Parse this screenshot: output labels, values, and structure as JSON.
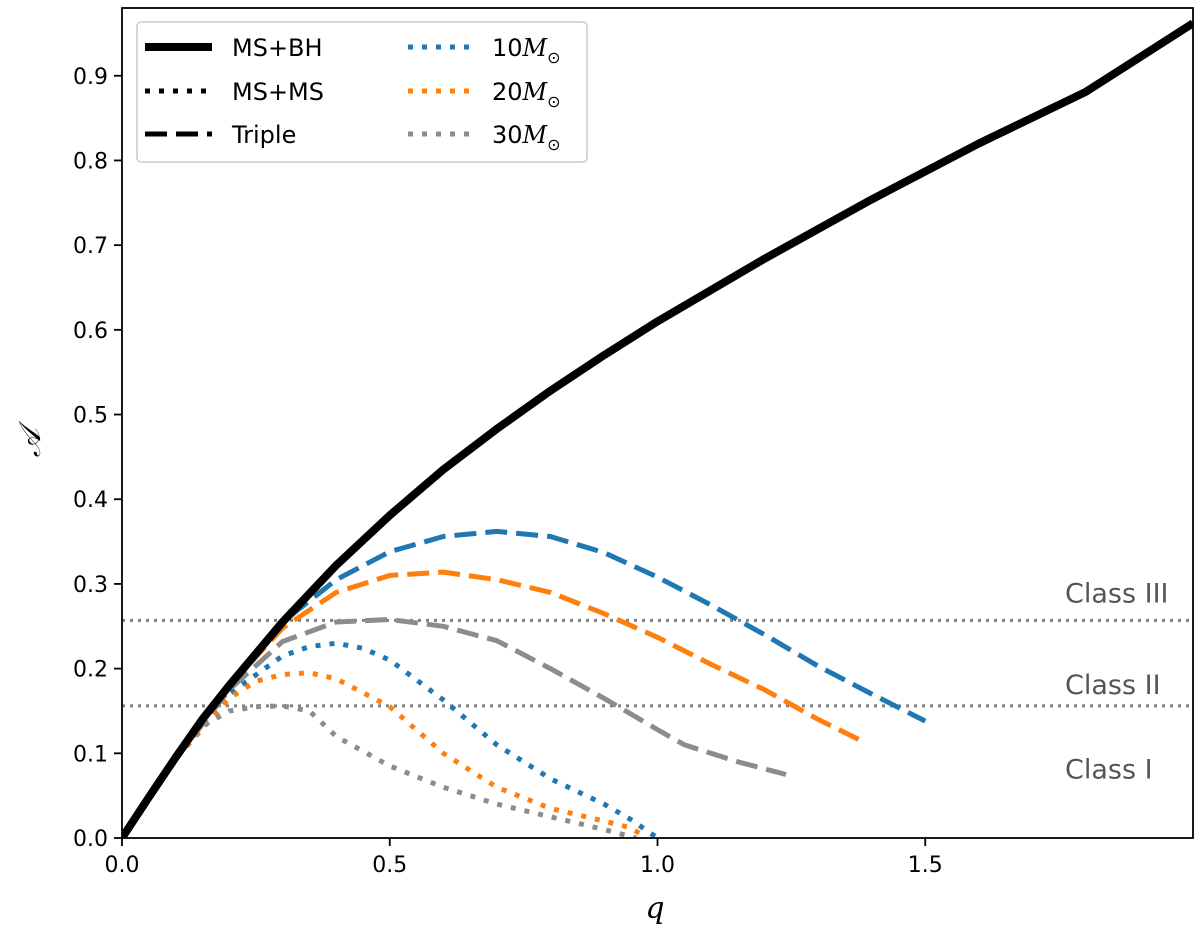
{
  "chart_data": {
    "type": "line",
    "xlabel": "q",
    "ylabel": "𝒜",
    "xlim": [
      0,
      2.0
    ],
    "ylim": [
      0,
      0.98
    ],
    "xticks": [
      0.0,
      0.5,
      1.0,
      1.5
    ],
    "xtick_labels": [
      "0.0",
      "0.5",
      "1.0",
      "1.5"
    ],
    "yticks": [
      0.0,
      0.1,
      0.2,
      0.3,
      0.4,
      0.5,
      0.6,
      0.7,
      0.8,
      0.9
    ],
    "ytick_labels": [
      "0.0",
      "0.1",
      "0.2",
      "0.3",
      "0.4",
      "0.5",
      "0.6",
      "0.7",
      "0.8",
      "0.9"
    ],
    "grid": false,
    "legend_position": "top-left",
    "legend": {
      "col1": [
        {
          "label": "MS+BH",
          "style": "solid"
        },
        {
          "label": "MS+MS",
          "style": "dotted"
        },
        {
          "label": "Triple",
          "style": "dashed"
        }
      ],
      "col2": [
        {
          "label_main": "10",
          "label_sym": "M",
          "label_sub": "⊙",
          "color": "#1f77b4"
        },
        {
          "label_main": "20",
          "label_sym": "M",
          "label_sub": "⊙",
          "color": "#ff7f0e"
        },
        {
          "label_main": "30",
          "label_sym": "M",
          "label_sub": "⊙",
          "color": "#8c8c8c"
        }
      ]
    },
    "class_lines": [
      {
        "label": "Class III",
        "y": 0.257,
        "label_y": 0.29
      },
      {
        "label": "Class II",
        "y": 0.156,
        "label_y": 0.182
      },
      {
        "label": "Class I",
        "y": null,
        "label_y": 0.082
      }
    ],
    "series": [
      {
        "name": "MS+BH",
        "style": "solid",
        "color": "#000000",
        "x": [
          0,
          0.05,
          0.1,
          0.15,
          0.2,
          0.3,
          0.4,
          0.5,
          0.6,
          0.7,
          0.8,
          0.9,
          1.0,
          1.2,
          1.4,
          1.6,
          1.8,
          2.0
        ],
        "y": [
          0,
          0.048,
          0.095,
          0.14,
          0.18,
          0.255,
          0.322,
          0.381,
          0.435,
          0.483,
          0.528,
          0.57,
          0.61,
          0.684,
          0.754,
          0.82,
          0.881,
          0.962
        ]
      },
      {
        "name": "Triple 10M",
        "style": "dashed",
        "color": "#1f77b4",
        "x": [
          0,
          0.1,
          0.2,
          0.3,
          0.4,
          0.5,
          0.6,
          0.7,
          0.8,
          0.9,
          1.0,
          1.1,
          1.2,
          1.3,
          1.4,
          1.5
        ],
        "y": [
          0,
          0.095,
          0.18,
          0.255,
          0.305,
          0.338,
          0.356,
          0.362,
          0.356,
          0.337,
          0.308,
          0.275,
          0.24,
          0.203,
          0.17,
          0.138
        ]
      },
      {
        "name": "Triple 20M",
        "style": "dashed",
        "color": "#ff7f0e",
        "x": [
          0,
          0.1,
          0.2,
          0.3,
          0.4,
          0.5,
          0.6,
          0.7,
          0.8,
          0.9,
          1.0,
          1.1,
          1.2,
          1.3,
          1.38
        ],
        "y": [
          0,
          0.095,
          0.18,
          0.248,
          0.29,
          0.31,
          0.314,
          0.305,
          0.29,
          0.265,
          0.237,
          0.205,
          0.175,
          0.14,
          0.115
        ]
      },
      {
        "name": "Triple 30M",
        "style": "dashed",
        "color": "#8c8c8c",
        "x": [
          0,
          0.1,
          0.2,
          0.3,
          0.4,
          0.5,
          0.6,
          0.7,
          0.8,
          0.9,
          1.0,
          1.05,
          1.15,
          1.24
        ],
        "y": [
          0,
          0.093,
          0.175,
          0.232,
          0.255,
          0.258,
          0.25,
          0.233,
          0.2,
          0.165,
          0.128,
          0.11,
          0.09,
          0.075
        ]
      },
      {
        "name": "MS+MS 10M",
        "style": "dotted",
        "color": "#1f77b4",
        "x": [
          0,
          0.1,
          0.2,
          0.3,
          0.35,
          0.4,
          0.45,
          0.5,
          0.6,
          0.7,
          0.8,
          0.9,
          0.95,
          1.0
        ],
        "y": [
          0,
          0.095,
          0.17,
          0.215,
          0.226,
          0.23,
          0.224,
          0.21,
          0.163,
          0.11,
          0.07,
          0.04,
          0.022,
          0.0
        ]
      },
      {
        "name": "MS+MS 20M",
        "style": "dotted",
        "color": "#ff7f0e",
        "x": [
          0,
          0.1,
          0.2,
          0.25,
          0.3,
          0.35,
          0.4,
          0.5,
          0.6,
          0.7,
          0.8,
          0.9,
          0.95,
          0.98
        ],
        "y": [
          0,
          0.093,
          0.165,
          0.185,
          0.193,
          0.195,
          0.188,
          0.155,
          0.1,
          0.06,
          0.035,
          0.02,
          0.012,
          0.0
        ]
      },
      {
        "name": "MS+MS 30M",
        "style": "dotted",
        "color": "#8c8c8c",
        "x": [
          0,
          0.1,
          0.15,
          0.2,
          0.25,
          0.3,
          0.35,
          0.4,
          0.5,
          0.6,
          0.7,
          0.8,
          0.9,
          0.96
        ],
        "y": [
          0,
          0.095,
          0.132,
          0.15,
          0.155,
          0.156,
          0.15,
          0.12,
          0.085,
          0.06,
          0.04,
          0.025,
          0.01,
          0.0
        ]
      }
    ]
  }
}
